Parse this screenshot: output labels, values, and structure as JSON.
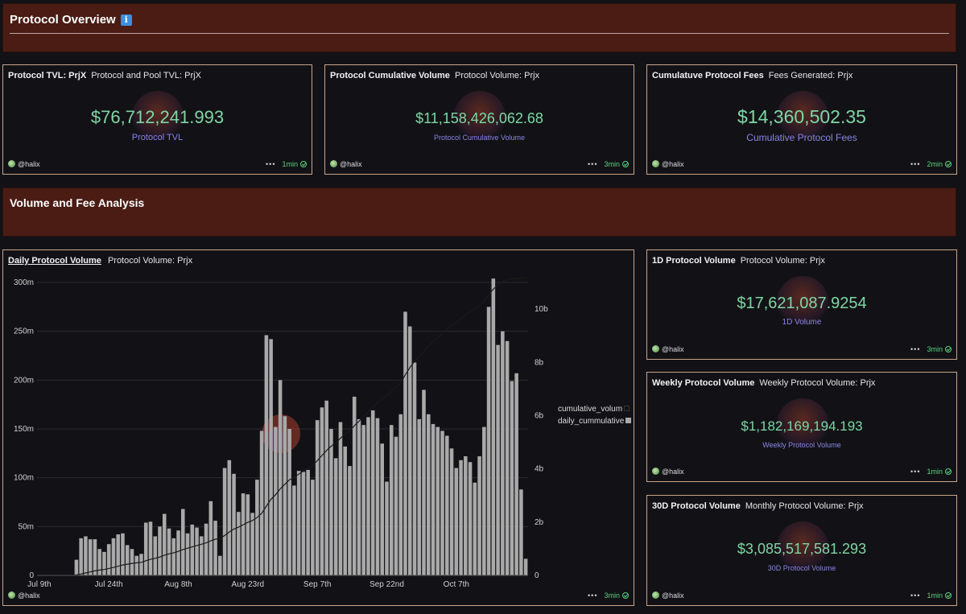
{
  "sections": {
    "overview": {
      "title": "Protocol Overview",
      "info_icon": "i"
    },
    "volume": {
      "title": "Volume and Fee Analysis"
    }
  },
  "cards": {
    "tvl": {
      "title": "Protocol TVL: PrjX",
      "subtitle": "Protocol and Pool TVL: PrjX",
      "value": "$76,712,241.993",
      "label": "Protocol TVL",
      "author": "@halix",
      "age": "1min"
    },
    "cumvol": {
      "title": "Protocol Cumulative Volume",
      "subtitle": "Protocol Volume: Prjx",
      "value": "$11,158,426,062.68",
      "label": "Protocol Cumulative Volume",
      "author": "@halix",
      "age": "3min"
    },
    "fees": {
      "title": "Cumulatuve Protocol Fees",
      "subtitle": "Fees Generated: Prjx",
      "value": "$14,360,502.35",
      "label": "Cumulative Protocol Fees",
      "author": "@halix",
      "age": "2min"
    },
    "daily": {
      "title": "Daily Protocol Volume",
      "subtitle": "Protocol Volume: Prjx",
      "author": "@halix",
      "age": "3min"
    },
    "oned": {
      "title": "1D Protocol Volume",
      "subtitle": "Protocol Volume: Prjx",
      "value": "$17,621,087.9254",
      "label": "1D Volume",
      "author": "@halix",
      "age": "3min"
    },
    "weekly": {
      "title": "Weekly Protocol Volume",
      "subtitle": "Weekly Protocol Volume: Prjx",
      "value": "$1,182,169,194.193",
      "label": "Weekly Protocol Volume",
      "author": "@halix",
      "age": "1min"
    },
    "monthly": {
      "title": "30D Protocol Volume",
      "subtitle": "Monthly Protocol Volume: Prjx",
      "value": "$3,085,517,581.293",
      "label": "30D Protocol Volume",
      "author": "@halix",
      "age": "1min"
    }
  },
  "colors": {
    "accent_green": "#7fd6a4",
    "label_purple": "#8b84e8",
    "section_bg": "#4a1c14",
    "card_border": "#c9a58a",
    "bar": "#a9a9a9"
  },
  "chart_data": {
    "type": "bar",
    "title": "Daily Protocol Volume",
    "x_tick_labels": [
      "Jul 9th",
      "Jul 24th",
      "Aug 8th",
      "Aug 23rd",
      "Sep 7th",
      "Sep 22nd",
      "Oct 7th"
    ],
    "y_left_ticks": [
      "0",
      "50m",
      "100m",
      "150m",
      "200m",
      "250m",
      "300m"
    ],
    "y_left_range": [
      0,
      300
    ],
    "y_left_unit": "millions",
    "y_right_ticks": [
      "0",
      "2b",
      "4b",
      "6b",
      "8b",
      "10b"
    ],
    "y_right_range": [
      0,
      11
    ],
    "y_right_unit": "billions",
    "series": [
      {
        "name": "daily_cummulative",
        "kind": "bar",
        "axis": "left",
        "values": [
          0,
          0,
          0,
          0,
          0,
          0,
          0,
          0,
          16,
          38,
          40,
          37,
          37,
          27,
          24,
          32,
          38,
          42,
          43,
          31,
          27,
          20,
          22,
          54,
          55,
          40,
          50,
          63,
          48,
          38,
          46,
          68,
          43,
          52,
          49,
          40,
          53,
          76,
          56,
          20,
          110,
          118,
          104,
          65,
          84,
          83,
          64,
          98,
          148,
          246,
          242,
          152,
          200,
          163,
          150,
          92,
          107,
          106,
          108,
          98,
          159,
          172,
          179,
          150,
          120,
          157,
          132,
          112,
          183,
          160,
          154,
          162,
          169,
          161,
          135,
          96,
          154,
          142,
          165,
          270,
          255,
          218,
          160,
          190,
          165,
          155,
          152,
          148,
          143,
          130,
          110,
          118,
          122,
          116,
          95,
          122,
          152,
          275,
          304,
          236,
          250,
          240,
          199,
          207,
          88,
          17
        ]
      },
      {
        "name": "cumulative_volum",
        "kind": "line",
        "axis": "right",
        "values": [
          0,
          0,
          0,
          0,
          0,
          0,
          0,
          0,
          0.02,
          0.05,
          0.09,
          0.13,
          0.17,
          0.2,
          0.22,
          0.26,
          0.3,
          0.34,
          0.39,
          0.42,
          0.45,
          0.47,
          0.49,
          0.55,
          0.6,
          0.64,
          0.69,
          0.76,
          0.81,
          0.85,
          0.9,
          0.97,
          1.02,
          1.07,
          1.12,
          1.17,
          1.22,
          1.3,
          1.36,
          1.38,
          1.5,
          1.63,
          1.74,
          1.81,
          1.9,
          1.99,
          2.06,
          2.17,
          2.33,
          2.6,
          2.86,
          3.03,
          3.25,
          3.42,
          3.59,
          3.69,
          3.8,
          3.92,
          4.03,
          4.14,
          4.31,
          4.5,
          4.69,
          4.85,
          4.98,
          5.15,
          5.3,
          5.42,
          5.62,
          5.79,
          5.96,
          6.14,
          6.32,
          6.49,
          6.64,
          6.74,
          6.91,
          7.06,
          7.24,
          7.53,
          7.81,
          8.04,
          8.22,
          8.42,
          8.6,
          8.77,
          8.93,
          9.09,
          9.25,
          9.39,
          9.51,
          9.64,
          9.77,
          9.89,
          10.0,
          10.13,
          10.3,
          10.55,
          10.75,
          10.9,
          11.02,
          11.1,
          11.13,
          11.15,
          11.16,
          11.16
        ]
      }
    ],
    "legend": [
      "cumulative_volum",
      "daily_cummulative"
    ],
    "legend_position": "right"
  }
}
